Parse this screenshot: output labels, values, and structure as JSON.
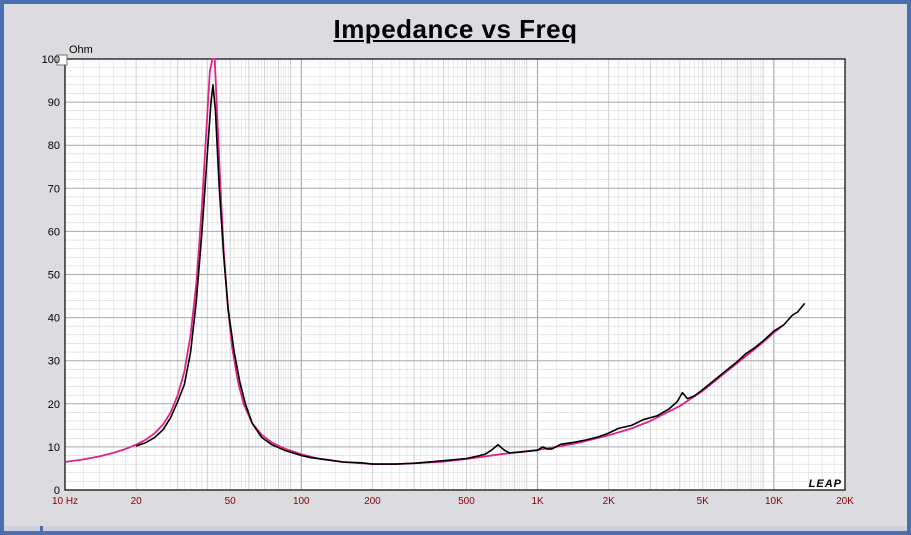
{
  "chart_data": {
    "type": "line",
    "title": "Impedance vs Freq",
    "ylabel": "Ohm",
    "xscale": "log",
    "xlim": [
      10,
      20000
    ],
    "ylim": [
      0,
      100
    ],
    "grid": true,
    "yticks": [
      {
        "value": 0,
        "label": "0"
      },
      {
        "value": 10,
        "label": "10"
      },
      {
        "value": 20,
        "label": "20"
      },
      {
        "value": 30,
        "label": "30"
      },
      {
        "value": 40,
        "label": "40"
      },
      {
        "value": 50,
        "label": "50"
      },
      {
        "value": 60,
        "label": "60"
      },
      {
        "value": 70,
        "label": "70"
      },
      {
        "value": 80,
        "label": "80"
      },
      {
        "value": 90,
        "label": "90"
      },
      {
        "value": 100,
        "label": "100"
      }
    ],
    "xticks": [
      {
        "value": 10,
        "label": "10 Hz"
      },
      {
        "value": 20,
        "label": "20"
      },
      {
        "value": 50,
        "label": "50"
      },
      {
        "value": 100,
        "label": "100"
      },
      {
        "value": 200,
        "label": "200"
      },
      {
        "value": 500,
        "label": "500"
      },
      {
        "value": 1000,
        "label": "1K"
      },
      {
        "value": 2000,
        "label": "2K"
      },
      {
        "value": 5000,
        "label": "5K"
      },
      {
        "value": 10000,
        "label": "10K"
      },
      {
        "value": 20000,
        "label": "20K"
      }
    ],
    "brand": "LEAP",
    "series": [
      {
        "color": "#e0208c",
        "points": [
          [
            10,
            6.5
          ],
          [
            12,
            7.1
          ],
          [
            14,
            7.8
          ],
          [
            16,
            8.6
          ],
          [
            18,
            9.5
          ],
          [
            20,
            10.5
          ],
          [
            22,
            11.7
          ],
          [
            24,
            13.2
          ],
          [
            26,
            15.2
          ],
          [
            28,
            18
          ],
          [
            30,
            22
          ],
          [
            32,
            27.5
          ],
          [
            34,
            36
          ],
          [
            36,
            48
          ],
          [
            38,
            66
          ],
          [
            39.5,
            82
          ],
          [
            41,
            97
          ],
          [
            42,
            101
          ],
          [
            43,
            100
          ],
          [
            44,
            88
          ],
          [
            45.5,
            70
          ],
          [
            47,
            55
          ],
          [
            49,
            42
          ],
          [
            51,
            33
          ],
          [
            54,
            25
          ],
          [
            57,
            20
          ],
          [
            62,
            15.5
          ],
          [
            68,
            12.8
          ],
          [
            75,
            11
          ],
          [
            85,
            9.6
          ],
          [
            100,
            8.3
          ],
          [
            120,
            7.2
          ],
          [
            150,
            6.5
          ],
          [
            200,
            6.0
          ],
          [
            250,
            6.0
          ],
          [
            300,
            6.2
          ],
          [
            400,
            6.6
          ],
          [
            500,
            7.2
          ],
          [
            600,
            7.8
          ],
          [
            700,
            8.3
          ],
          [
            800,
            8.7
          ],
          [
            1000,
            9.3
          ],
          [
            1200,
            10.0
          ],
          [
            1500,
            11.0
          ],
          [
            2000,
            12.7
          ],
          [
            2500,
            14.3
          ],
          [
            3000,
            16.0
          ],
          [
            4000,
            19.5
          ],
          [
            5000,
            23.0
          ],
          [
            6000,
            26.5
          ],
          [
            7000,
            29.5
          ],
          [
            8000,
            32.0
          ],
          [
            9000,
            34.3
          ],
          [
            10000,
            36.5
          ],
          [
            11000,
            38.3
          ]
        ]
      },
      {
        "color": "#000000",
        "points": [
          [
            20,
            10.2
          ],
          [
            22,
            11.0
          ],
          [
            24,
            12.2
          ],
          [
            26,
            14.0
          ],
          [
            28,
            16.8
          ],
          [
            30,
            20.5
          ],
          [
            32,
            24.5
          ],
          [
            34,
            32
          ],
          [
            36,
            44
          ],
          [
            38,
            60
          ],
          [
            40,
            78
          ],
          [
            41.5,
            90
          ],
          [
            42.3,
            94
          ],
          [
            43.3,
            88
          ],
          [
            45,
            70
          ],
          [
            47,
            54
          ],
          [
            49,
            42
          ],
          [
            52,
            32
          ],
          [
            55,
            25
          ],
          [
            58,
            20
          ],
          [
            62,
            15.5
          ],
          [
            68,
            12.2
          ],
          [
            75,
            10.5
          ],
          [
            85,
            9.2
          ],
          [
            100,
            8.0
          ],
          [
            110,
            7.5
          ],
          [
            130,
            7.0
          ],
          [
            150,
            6.5
          ],
          [
            180,
            6.3
          ],
          [
            200,
            6.0
          ],
          [
            250,
            6.0
          ],
          [
            300,
            6.2
          ],
          [
            400,
            6.8
          ],
          [
            500,
            7.3
          ],
          [
            550,
            7.8
          ],
          [
            600,
            8.3
          ],
          [
            640,
            9.3
          ],
          [
            680,
            10.5
          ],
          [
            720,
            9.3
          ],
          [
            760,
            8.6
          ],
          [
            850,
            8.8
          ],
          [
            950,
            9.1
          ],
          [
            1000,
            9.2
          ],
          [
            1050,
            10.0
          ],
          [
            1100,
            9.5
          ],
          [
            1150,
            9.5
          ],
          [
            1250,
            10.6
          ],
          [
            1400,
            11.0
          ],
          [
            1600,
            11.6
          ],
          [
            1800,
            12.3
          ],
          [
            2000,
            13.2
          ],
          [
            2200,
            14.3
          ],
          [
            2500,
            15.0
          ],
          [
            2800,
            16.3
          ],
          [
            3200,
            17.2
          ],
          [
            3600,
            18.8
          ],
          [
            3900,
            20.5
          ],
          [
            4100,
            22.6
          ],
          [
            4300,
            21.2
          ],
          [
            4600,
            21.8
          ],
          [
            5000,
            23.3
          ],
          [
            5600,
            25.5
          ],
          [
            6300,
            27.8
          ],
          [
            7000,
            29.8
          ],
          [
            7600,
            31.6
          ],
          [
            8300,
            33.0
          ],
          [
            9100,
            34.8
          ],
          [
            10000,
            36.9
          ],
          [
            11000,
            38.3
          ],
          [
            12000,
            40.6
          ],
          [
            12600,
            41.3
          ],
          [
            13500,
            43.3
          ]
        ]
      }
    ]
  }
}
